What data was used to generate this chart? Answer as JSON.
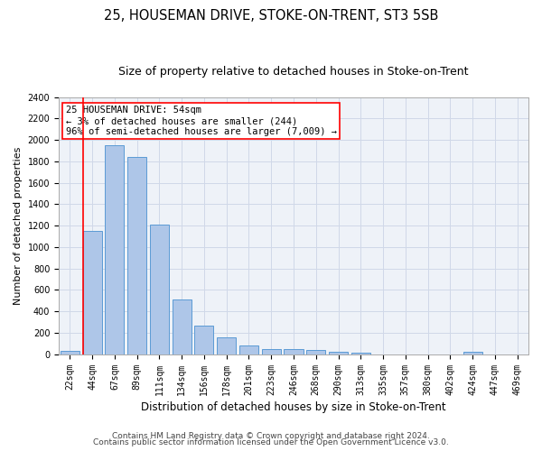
{
  "title": "25, HOUSEMAN DRIVE, STOKE-ON-TRENT, ST3 5SB",
  "subtitle": "Size of property relative to detached houses in Stoke-on-Trent",
  "xlabel": "Distribution of detached houses by size in Stoke-on-Trent",
  "ylabel": "Number of detached properties",
  "categories": [
    "22sqm",
    "44sqm",
    "67sqm",
    "89sqm",
    "111sqm",
    "134sqm",
    "156sqm",
    "178sqm",
    "201sqm",
    "223sqm",
    "246sqm",
    "268sqm",
    "290sqm",
    "313sqm",
    "335sqm",
    "357sqm",
    "380sqm",
    "402sqm",
    "424sqm",
    "447sqm",
    "469sqm"
  ],
  "values": [
    30,
    1150,
    1950,
    1840,
    1210,
    510,
    265,
    155,
    80,
    50,
    45,
    35,
    20,
    15,
    0,
    0,
    0,
    0,
    20,
    0,
    0
  ],
  "bar_color": "#aec6e8",
  "bar_edge_color": "#5b9bd5",
  "vline_color": "red",
  "annotation_text": "25 HOUSEMAN DRIVE: 54sqm\n← 3% of detached houses are smaller (244)\n96% of semi-detached houses are larger (7,009) →",
  "annotation_box_color": "white",
  "annotation_box_edge": "red",
  "ylim": [
    0,
    2400
  ],
  "yticks": [
    0,
    200,
    400,
    600,
    800,
    1000,
    1200,
    1400,
    1600,
    1800,
    2000,
    2200,
    2400
  ],
  "grid_color": "#d0d8e8",
  "background_color": "#eef2f8",
  "footer1": "Contains HM Land Registry data © Crown copyright and database right 2024.",
  "footer2": "Contains public sector information licensed under the Open Government Licence v3.0.",
  "title_fontsize": 10.5,
  "subtitle_fontsize": 9,
  "xlabel_fontsize": 8.5,
  "ylabel_fontsize": 8,
  "tick_fontsize": 7,
  "footer_fontsize": 6.5,
  "annotation_fontsize": 7.5
}
